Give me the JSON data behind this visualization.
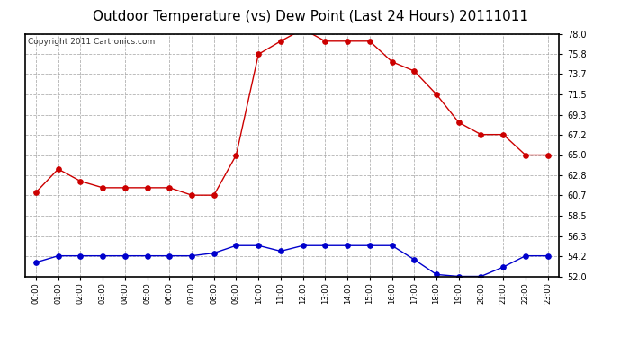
{
  "title": "Outdoor Temperature (vs) Dew Point (Last 24 Hours) 20111011",
  "copyright": "Copyright 2011 Cartronics.com",
  "hours": [
    "00:00",
    "01:00",
    "02:00",
    "03:00",
    "04:00",
    "05:00",
    "06:00",
    "07:00",
    "08:00",
    "09:00",
    "10:00",
    "11:00",
    "12:00",
    "13:00",
    "14:00",
    "15:00",
    "16:00",
    "17:00",
    "18:00",
    "19:00",
    "20:00",
    "21:00",
    "22:00",
    "23:00"
  ],
  "temp": [
    61.0,
    63.5,
    62.2,
    61.5,
    61.5,
    61.5,
    61.5,
    60.7,
    60.7,
    65.0,
    75.8,
    77.2,
    78.5,
    77.2,
    77.2,
    77.2,
    75.0,
    74.0,
    71.5,
    68.5,
    67.2,
    67.2,
    65.0,
    65.0
  ],
  "dew": [
    53.5,
    54.2,
    54.2,
    54.2,
    54.2,
    54.2,
    54.2,
    54.2,
    54.5,
    55.3,
    55.3,
    54.7,
    55.3,
    55.3,
    55.3,
    55.3,
    55.3,
    53.8,
    52.2,
    52.0,
    52.0,
    53.0,
    54.2,
    54.2
  ],
  "temp_color": "#cc0000",
  "dew_color": "#0000cc",
  "background_color": "#ffffff",
  "plot_bg_color": "#ffffff",
  "grid_color": "#aaaaaa",
  "ylim": [
    52.0,
    78.0
  ],
  "yticks": [
    52.0,
    54.2,
    56.3,
    58.5,
    60.7,
    62.8,
    65.0,
    67.2,
    69.3,
    71.5,
    73.7,
    75.8,
    78.0
  ],
  "title_fontsize": 11,
  "copyright_fontsize": 6.5,
  "marker_size": 4,
  "linewidth": 1.0
}
